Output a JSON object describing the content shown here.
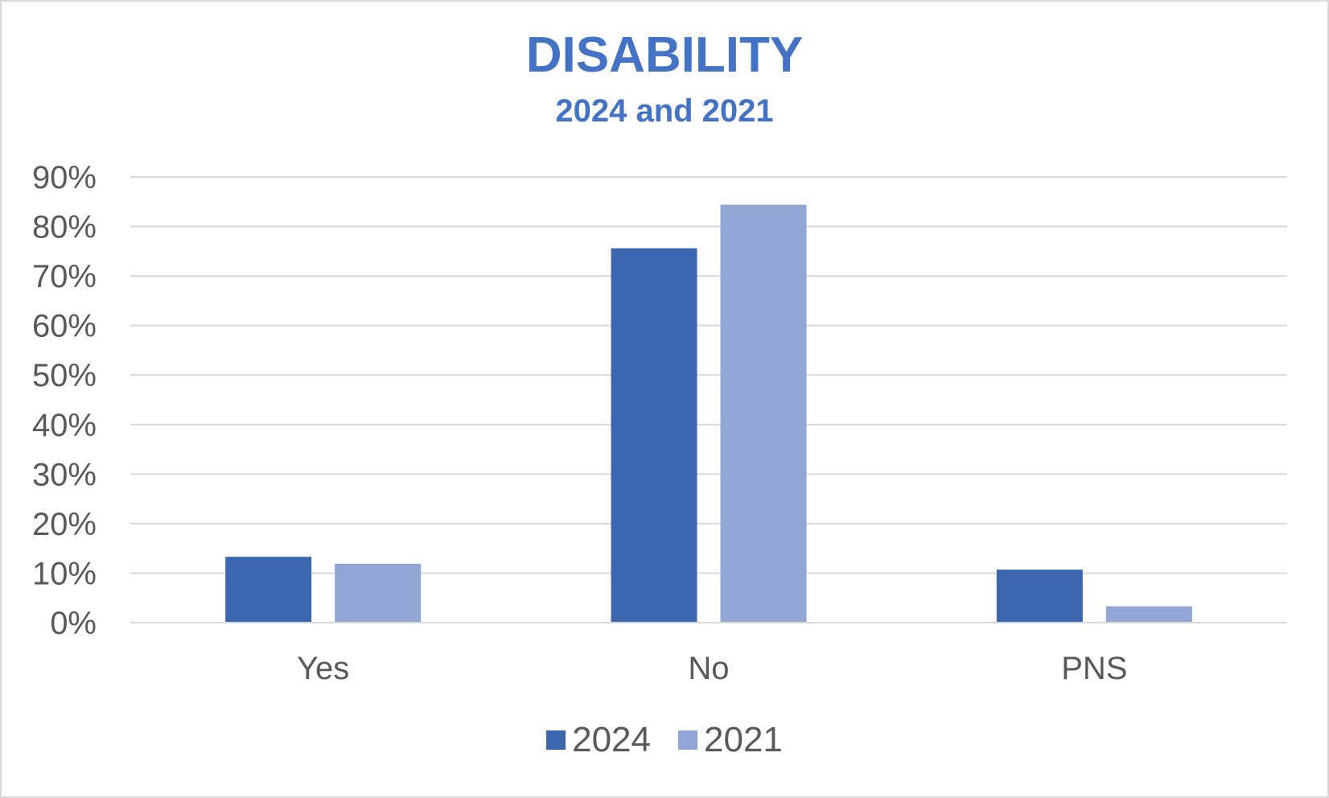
{
  "chart_data": {
    "type": "bar",
    "title": "DISABILITY",
    "subtitle": "2024 and 2021",
    "categories": [
      "Yes",
      "No",
      "PNS"
    ],
    "series": [
      {
        "name": "2024",
        "color": "#3c66ae",
        "values": [
          13.3,
          75.6,
          10.7
        ]
      },
      {
        "name": "2021",
        "color": "#91a6d4",
        "values": [
          11.9,
          84.4,
          3.3
        ]
      }
    ],
    "ylim": [
      0,
      90
    ],
    "yticks": [
      "0%",
      "10%",
      "20%",
      "30%",
      "40%",
      "50%",
      "60%",
      "70%",
      "80%",
      "90%"
    ],
    "ytick_values": [
      0,
      10,
      20,
      30,
      40,
      50,
      60,
      70,
      80,
      90
    ],
    "grid": true,
    "legend_position": "bottom",
    "xlabel": "",
    "ylabel": ""
  }
}
